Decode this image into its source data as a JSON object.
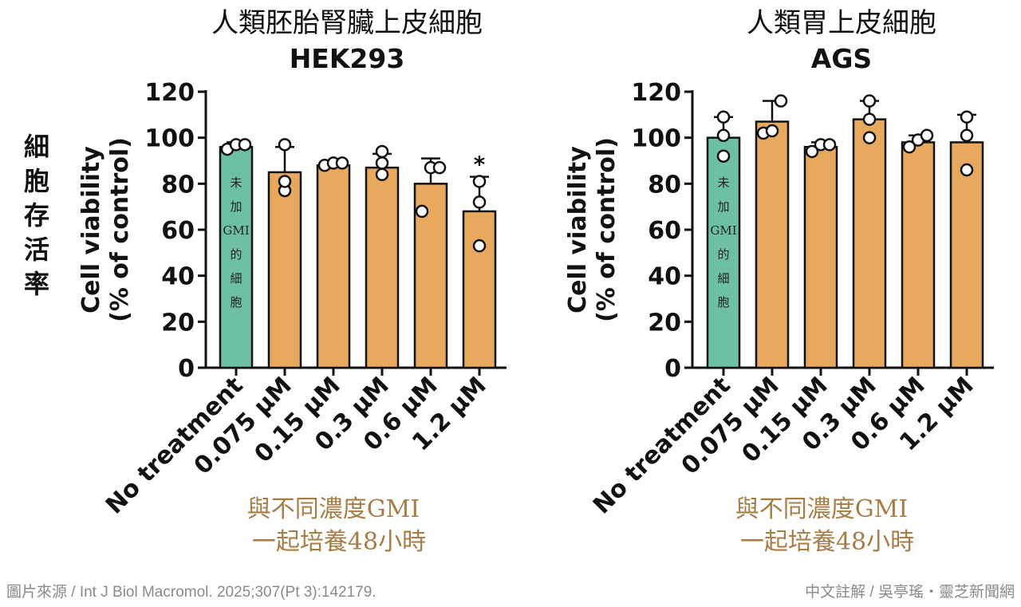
{
  "side_label": "細胞存活率",
  "bar_note": [
    "未",
    "加",
    "GMI",
    "的",
    "細",
    "胞"
  ],
  "condition_note": [
    "與不同濃度GMI",
    "一起培養48小時"
  ],
  "footer_left": "圖片來源 / Int J Biol Macromol. 2025;307(Pt 3):142179.",
  "footer_right": "中文註解 / 吳亭瑤・靈芝新聞網",
  "colors": {
    "control_bar": "#6dbfa6",
    "treatment_bar": "#e8a95f",
    "outline": "#111111",
    "note": "#a77c45"
  },
  "chart_data": [
    {
      "type": "bar",
      "title": "人類胚胎腎臟上皮細胞",
      "subtitle": "HEK293",
      "ylabel": [
        "Cell viability",
        "(% of control)"
      ],
      "ylim": [
        0,
        120
      ],
      "yticks": [
        0,
        20,
        40,
        60,
        80,
        100,
        120
      ],
      "categories": [
        "No treatment",
        "0.075 μM",
        "0.15 μM",
        "0.3 μM",
        "0.6 μM",
        "1.2 μM"
      ],
      "values": [
        96,
        85,
        88,
        87,
        80,
        68
      ],
      "error": [
        2,
        11,
        1,
        6,
        11,
        15
      ],
      "points": [
        [
          95,
          97,
          97
        ],
        [
          77,
          81,
          97
        ],
        [
          88,
          89,
          89
        ],
        [
          84,
          89,
          94
        ],
        [
          68,
          87,
          87
        ],
        [
          53,
          72,
          81
        ]
      ],
      "significance": [
        "",
        "",
        "",
        "",
        "",
        "*"
      ]
    },
    {
      "type": "bar",
      "title": "人類胃上皮細胞",
      "subtitle": "AGS",
      "ylabel": [
        "Cell viability",
        "(% of control)"
      ],
      "ylim": [
        0,
        120
      ],
      "yticks": [
        0,
        20,
        40,
        60,
        80,
        100,
        120
      ],
      "categories": [
        "No treatment",
        "0.075 μM",
        "0.15 μM",
        "0.3 μM",
        "0.6 μM",
        "1.2 μM"
      ],
      "values": [
        100,
        107,
        96,
        108,
        98,
        98
      ],
      "error": [
        9,
        9,
        2,
        8,
        3,
        12
      ],
      "points": [
        [
          92,
          101,
          109
        ],
        [
          102,
          103,
          116
        ],
        [
          94,
          97,
          97
        ],
        [
          100,
          108,
          116
        ],
        [
          96,
          99,
          101
        ],
        [
          86,
          101,
          109
        ]
      ],
      "significance": [
        "",
        "",
        "",
        "",
        "",
        ""
      ]
    }
  ]
}
